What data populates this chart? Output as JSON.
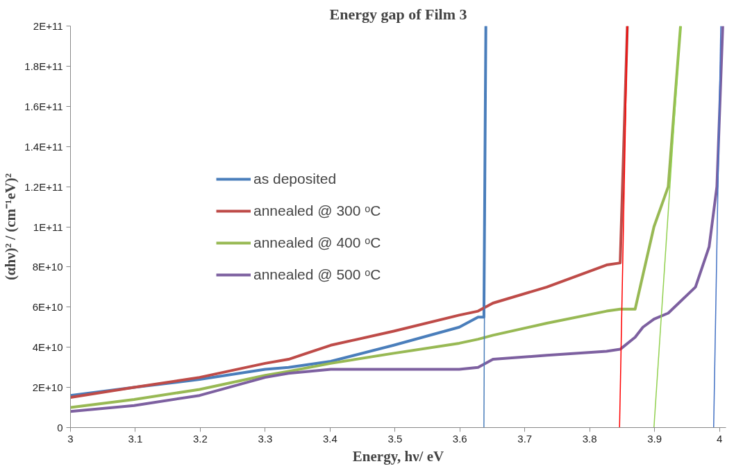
{
  "chart_data": {
    "type": "line",
    "title": "Energy gap of Film 3",
    "xlabel": "Energy, hν/ eV",
    "ylabel": "(αhν)² / (cm⁻¹eV)²",
    "xlim": [
      3,
      4.01
    ],
    "xticks": [
      3,
      3.1,
      3.2,
      3.3,
      3.4,
      3.5,
      3.6,
      3.7,
      3.8,
      3.9,
      4
    ],
    "ylim": [
      0,
      200000000000.0
    ],
    "yticks": [
      0,
      {
        "value": 20000000000.0,
        "label": "2E+10"
      },
      {
        "value": 40000000000.0,
        "label": "4E+10"
      },
      {
        "value": 60000000000.0,
        "label": "6E+10"
      },
      {
        "value": 80000000000.0,
        "label": "8E+10"
      },
      {
        "value": 100000000000.0,
        "label": "1E+11"
      },
      {
        "value": 120000000000.0,
        "label": "1.2E+11"
      },
      {
        "value": 140000000000.0,
        "label": "1.4E+11"
      },
      {
        "value": 160000000000.0,
        "label": "1.6E+11"
      },
      {
        "value": 180000000000.0,
        "label": "1.8E+11"
      },
      {
        "value": 200000000000.0,
        "label": "2E+11"
      }
    ],
    "grid": false,
    "legend": "left",
    "line_style": "solid",
    "marker": "none",
    "series": [
      {
        "name": "as deposited",
        "color": "#4a7ebb",
        "x": [
          3.0,
          3.098,
          3.199,
          3.3,
          3.336,
          3.401,
          3.498,
          3.599,
          3.628,
          3.637,
          3.64
        ],
        "values": [
          16000000000.0,
          20000000000.0,
          24000000000.0,
          29000000000.0,
          30000000000.0,
          33000000000.0,
          41000000000.0,
          50000000000.0,
          55000000000.0,
          55000000000.0,
          200000000000.0
        ]
      },
      {
        "name": "annealed @ 300 ᵒC",
        "color": "#be4b48",
        "x": [
          3.0,
          3.098,
          3.199,
          3.3,
          3.336,
          3.401,
          3.498,
          3.599,
          3.628,
          3.651,
          3.734,
          3.826,
          3.847,
          3.858
        ],
        "values": [
          15000000000.0,
          20000000000.0,
          25000000000.0,
          32000000000.0,
          34000000000.0,
          41000000000.0,
          48000000000.0,
          56000000000.0,
          58000000000.0,
          62000000000.0,
          70000000000.0,
          81000000000.0,
          82000000000.0,
          200000000000.0
        ]
      },
      {
        "name": "annealed @ 400 ᵒC",
        "color": "#98b954",
        "x": [
          3.0,
          3.098,
          3.199,
          3.3,
          3.336,
          3.401,
          3.498,
          3.599,
          3.628,
          3.651,
          3.734,
          3.826,
          3.847,
          3.87,
          3.882,
          3.899,
          3.921,
          3.94
        ],
        "values": [
          10000000000.0,
          14000000000.0,
          19000000000.0,
          26000000000.0,
          28000000000.0,
          32000000000.0,
          37000000000.0,
          42000000000.0,
          44000000000.0,
          46000000000.0,
          52000000000.0,
          58000000000.0,
          59000000000.0,
          59000000000.0,
          76000000000.0,
          100000000000.0,
          120000000000.0,
          200000000000.0
        ]
      },
      {
        "name": "annealed @ 500 ᵒC",
        "color": "#7d60a0",
        "x": [
          3.0,
          3.098,
          3.199,
          3.3,
          3.336,
          3.401,
          3.498,
          3.599,
          3.628,
          3.651,
          3.734,
          3.826,
          3.847,
          3.87,
          3.882,
          3.899,
          3.921,
          3.963,
          3.984,
          3.996,
          4.005
        ],
        "values": [
          8000000000.0,
          11000000000.0,
          16000000000.0,
          25000000000.0,
          27000000000.0,
          29000000000.0,
          29000000000.0,
          29000000000.0,
          30000000000.0,
          34000000000.0,
          36000000000.0,
          38000000000.0,
          39000000000.0,
          45000000000.0,
          50000000000.0,
          54000000000.0,
          57000000000.0,
          70000000000.0,
          90000000000.0,
          120000000000.0,
          200000000000.0
        ]
      },
      {
        "color": "#4a7ebb",
        "x": [
          3.637,
          3.64
        ],
        "values": [
          0,
          200000000000.0
        ]
      },
      {
        "color": "#ff0000",
        "x": [
          3.846,
          3.858
        ],
        "values": [
          0,
          200000000000.0
        ]
      },
      {
        "color": "#92d050",
        "x": [
          3.899,
          3.94
        ],
        "values": [
          0,
          200000000000.0
        ]
      },
      {
        "color": "#4472c4",
        "x": [
          3.991,
          4.002
        ],
        "values": [
          0,
          200000000000.0
        ]
      }
    ]
  }
}
